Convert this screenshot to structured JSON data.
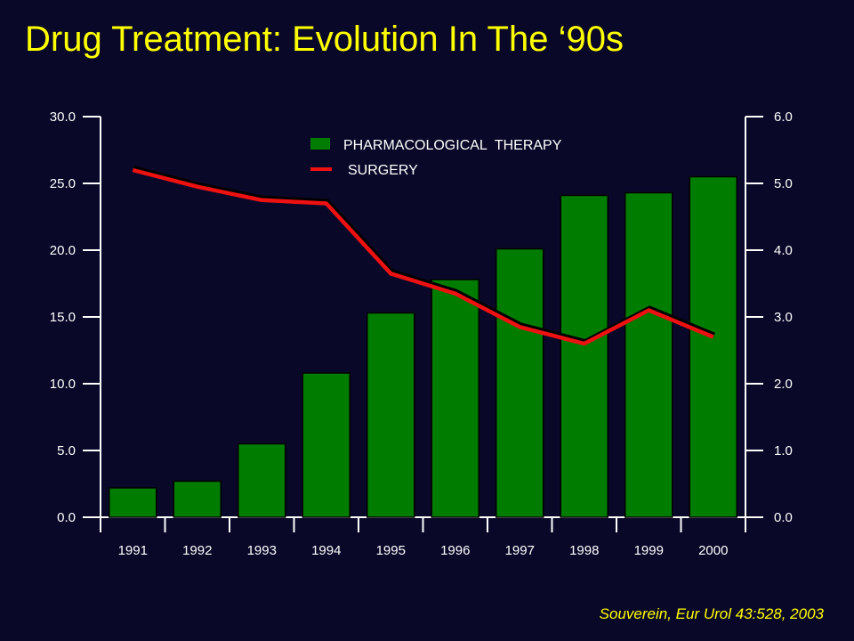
{
  "slide": {
    "title": "Drug Treatment: Evolution In The ‘90s",
    "citation": "Souverein, Eur Urol 43:528, 2003"
  },
  "colors": {
    "background": "#0a0828",
    "title": "#ffff00",
    "bars": "#007d00",
    "line": "#ee1111",
    "axes": "#ffffff"
  },
  "chart_data": {
    "type": "bar",
    "categories": [
      "1991",
      "1992",
      "1993",
      "1994",
      "1995",
      "1996",
      "1997",
      "1998",
      "1999",
      "2000"
    ],
    "left_axis": {
      "ylim": [
        0,
        30
      ],
      "ticks": [
        "0.0",
        "5.0",
        "10.0",
        "15.0",
        "20.0",
        "25.0",
        "30.0"
      ]
    },
    "right_axis": {
      "ylim": [
        0,
        6
      ],
      "ticks": [
        "0.0",
        "1.0",
        "2.0",
        "3.0",
        "4.0",
        "5.0",
        "6.0"
      ]
    },
    "series": [
      {
        "name": "PHARMACOLOGICAL  THERAPY",
        "kind": "bar",
        "axis": "left",
        "values": [
          2.2,
          2.7,
          5.5,
          10.8,
          15.3,
          17.8,
          20.1,
          24.1,
          24.3,
          25.5
        ]
      },
      {
        "name": "SURGERY",
        "kind": "line",
        "axis": "right",
        "values": [
          5.2,
          4.95,
          4.75,
          4.7,
          3.65,
          3.35,
          2.85,
          2.6,
          3.1,
          2.7
        ]
      }
    ],
    "legend_position": "top-center",
    "grid": false
  }
}
